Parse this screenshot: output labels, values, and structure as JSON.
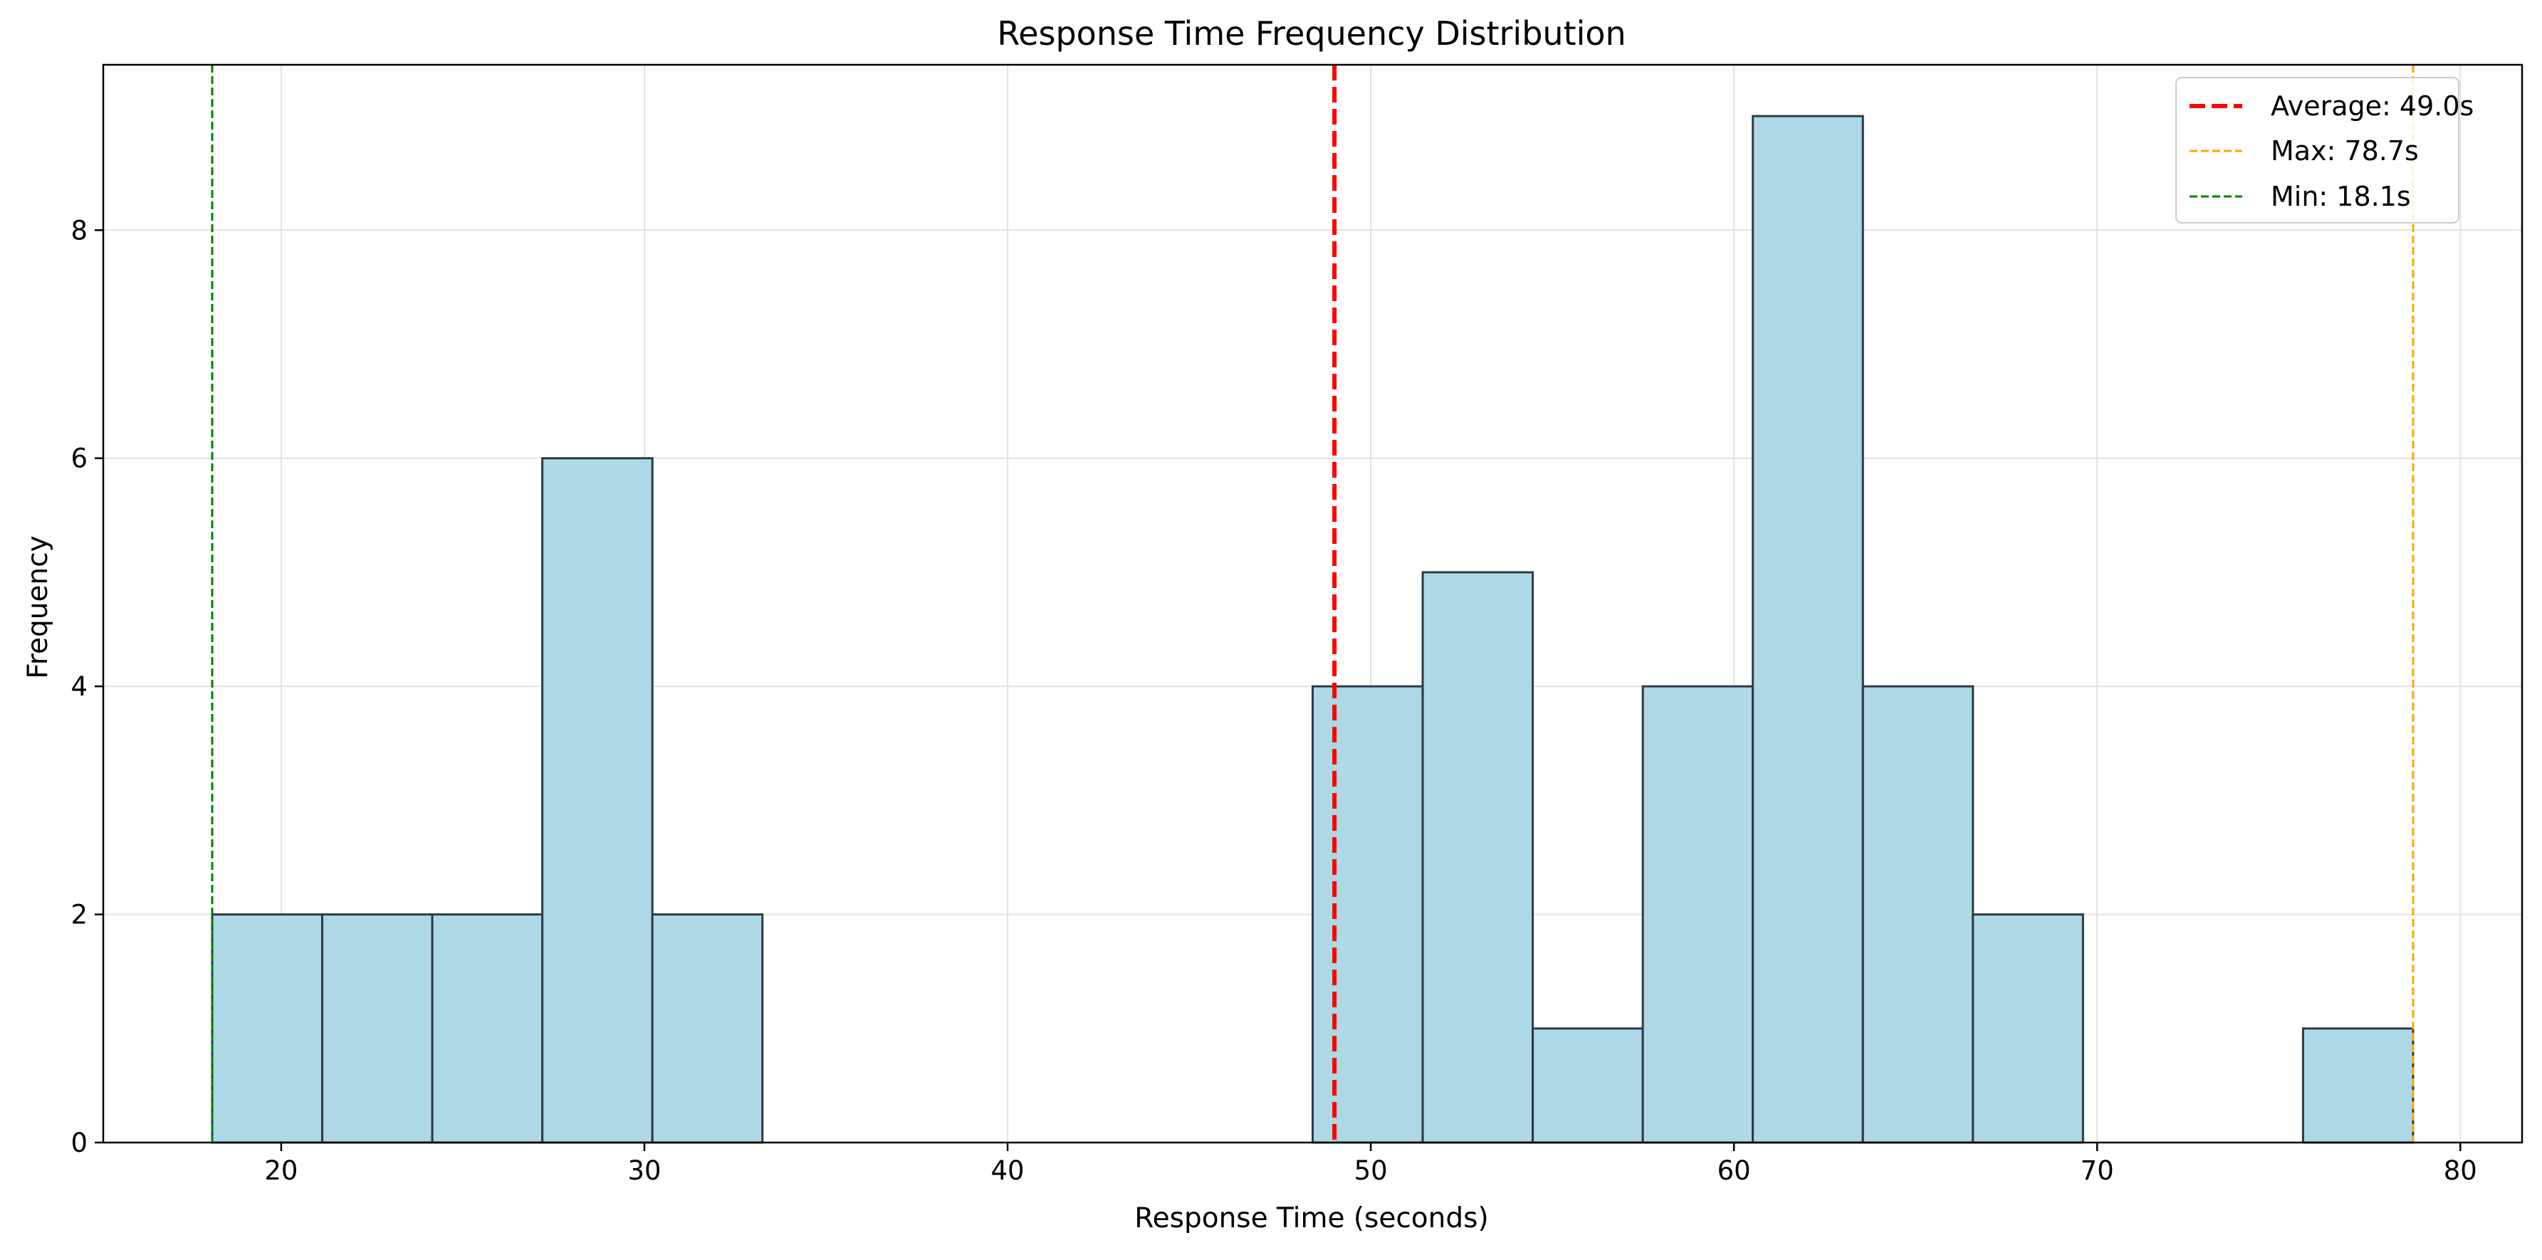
{
  "chart_data": {
    "type": "bar",
    "title": "Response Time Frequency Distribution",
    "xlabel": "Response Time (seconds)",
    "ylabel": "Frequency",
    "xlim": [
      15.1,
      81.7
    ],
    "ylim": [
      0,
      9.45
    ],
    "xticks": [
      20,
      30,
      40,
      50,
      60,
      70,
      80
    ],
    "yticks": [
      0,
      2,
      4,
      6,
      8
    ],
    "grid": true,
    "legend_placement": "top-right",
    "bar_color": "#add8e6",
    "bar_edge_color": "#2e3a44",
    "bins": [
      {
        "start": 18.1,
        "end": 21.13,
        "count": 2
      },
      {
        "start": 21.13,
        "end": 24.16,
        "count": 2
      },
      {
        "start": 24.16,
        "end": 27.19,
        "count": 2
      },
      {
        "start": 27.19,
        "end": 30.22,
        "count": 6
      },
      {
        "start": 30.22,
        "end": 33.25,
        "count": 2
      },
      {
        "start": 33.25,
        "end": 36.28,
        "count": 0
      },
      {
        "start": 36.28,
        "end": 39.31,
        "count": 0
      },
      {
        "start": 39.31,
        "end": 42.34,
        "count": 0
      },
      {
        "start": 42.34,
        "end": 45.37,
        "count": 0
      },
      {
        "start": 45.37,
        "end": 48.4,
        "count": 0
      },
      {
        "start": 48.4,
        "end": 51.43,
        "count": 4
      },
      {
        "start": 51.43,
        "end": 54.46,
        "count": 5
      },
      {
        "start": 54.46,
        "end": 57.49,
        "count": 1
      },
      {
        "start": 57.49,
        "end": 60.52,
        "count": 4
      },
      {
        "start": 60.52,
        "end": 63.55,
        "count": 9
      },
      {
        "start": 63.55,
        "end": 66.58,
        "count": 4
      },
      {
        "start": 66.58,
        "end": 69.61,
        "count": 2
      },
      {
        "start": 69.61,
        "end": 72.64,
        "count": 0
      },
      {
        "start": 72.64,
        "end": 75.67,
        "count": 0
      },
      {
        "start": 75.67,
        "end": 78.7,
        "count": 1
      }
    ],
    "reference_lines": [
      {
        "label": "Average: 49.0s",
        "value": 49.0,
        "color": "#ff0000",
        "style": "dashed-thick"
      },
      {
        "label": "Max: 78.7s",
        "value": 78.7,
        "color": "#ffa500",
        "style": "dashed-thin"
      },
      {
        "label": "Min: 18.1s",
        "value": 18.1,
        "color": "#008000",
        "style": "dashed-thin"
      }
    ]
  }
}
